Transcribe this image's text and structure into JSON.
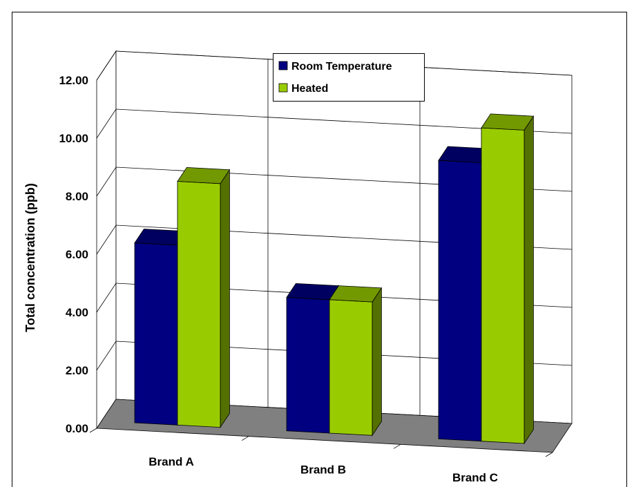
{
  "chart_data": {
    "type": "bar",
    "title": "",
    "xlabel": "",
    "ylabel": "Total concentration (ppb)",
    "categories": [
      "Brand A",
      "Brand B",
      "Brand C"
    ],
    "series": [
      {
        "name": "Room Temperature",
        "values": [
          6.2,
          4.6,
          9.6
        ],
        "color": "#000080"
      },
      {
        "name": "Heated",
        "values": [
          8.4,
          4.6,
          10.8
        ],
        "color": "#99CC00"
      }
    ],
    "ylim": [
      0,
      12
    ],
    "yticks": [
      "0.00",
      "2.00",
      "4.00",
      "6.00",
      "8.00",
      "10.00",
      "12.00"
    ],
    "grid": true,
    "legend_position": "top-center",
    "view": "3d-perspective"
  }
}
